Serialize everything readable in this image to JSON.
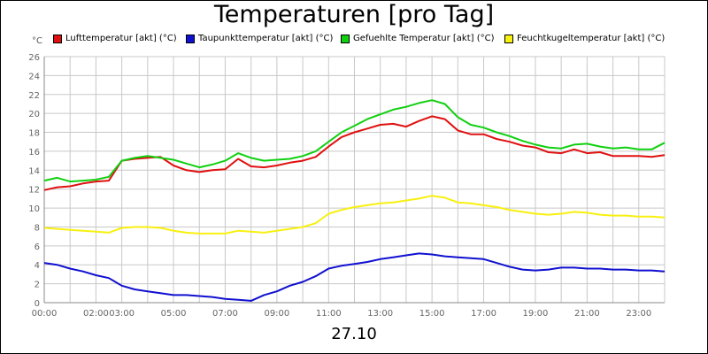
{
  "chart_data": {
    "type": "line",
    "title": "Temperaturen [pro Tag]",
    "date_label": "27.10",
    "y_unit": "°C",
    "ylim": [
      0,
      26
    ],
    "y_ticks": [
      "0",
      "2",
      "4",
      "6",
      "8",
      "10",
      "12",
      "14",
      "16",
      "18",
      "20",
      "22",
      "24",
      "26"
    ],
    "x_tick_labels": [
      "00:00",
      "02:00",
      "03:00",
      "05:00",
      "07:00",
      "09:00",
      "11:00",
      "13:00",
      "15:00",
      "17:00",
      "19:00",
      "21:00",
      "23:00"
    ],
    "x_tick_hours": [
      0,
      2,
      3,
      5,
      7,
      9,
      11,
      13,
      15,
      17,
      19,
      21,
      23
    ],
    "xlim_hours": [
      0,
      24
    ],
    "grid": true,
    "legend_placement": "top",
    "x_hours": [
      0,
      0.5,
      1,
      1.5,
      2,
      2.5,
      3,
      3.5,
      4,
      4.5,
      5,
      5.5,
      6,
      6.5,
      7,
      7.5,
      8,
      8.5,
      9,
      9.5,
      10,
      10.5,
      11,
      11.5,
      12,
      12.5,
      13,
      13.5,
      14,
      14.5,
      15,
      15.5,
      16,
      16.5,
      17,
      17.5,
      18,
      18.5,
      19,
      19.5,
      20,
      20.5,
      21,
      21.5,
      22,
      22.5,
      23,
      23.5,
      24
    ],
    "series": [
      {
        "name": "Lufttemperatur [akt] (°C)",
        "color": "#e01010",
        "values": [
          11.9,
          12.2,
          12.3,
          12.6,
          12.8,
          12.9,
          15.0,
          15.2,
          15.3,
          15.4,
          14.5,
          14.0,
          13.8,
          14.0,
          14.1,
          15.2,
          14.4,
          14.3,
          14.5,
          14.8,
          15.0,
          15.4,
          16.5,
          17.5,
          18.0,
          18.4,
          18.8,
          18.9,
          18.6,
          19.2,
          19.7,
          19.4,
          18.2,
          17.8,
          17.8,
          17.3,
          17.0,
          16.6,
          16.4,
          15.9,
          15.8,
          16.2,
          15.8,
          15.9,
          15.5,
          15.5,
          15.5,
          15.4,
          15.6
        ]
      },
      {
        "name": "Taupunkttemperatur [akt] (°C)",
        "color": "#1010d0",
        "values": [
          4.2,
          4.0,
          3.6,
          3.3,
          2.9,
          2.6,
          1.8,
          1.4,
          1.2,
          1.0,
          0.8,
          0.8,
          0.7,
          0.6,
          0.4,
          0.3,
          0.2,
          0.8,
          1.2,
          1.8,
          2.2,
          2.8,
          3.6,
          3.9,
          4.1,
          4.3,
          4.6,
          4.8,
          5.0,
          5.2,
          5.1,
          4.9,
          4.8,
          4.7,
          4.6,
          4.2,
          3.8,
          3.5,
          3.4,
          3.5,
          3.7,
          3.7,
          3.6,
          3.6,
          3.5,
          3.5,
          3.4,
          3.4,
          3.3
        ]
      },
      {
        "name": "Gefuehlte Temperatur [akt] (°C)",
        "color": "#10d010",
        "values": [
          12.9,
          13.2,
          12.8,
          12.9,
          13.0,
          13.3,
          15.0,
          15.3,
          15.5,
          15.3,
          15.1,
          14.7,
          14.3,
          14.6,
          15.0,
          15.8,
          15.3,
          15.0,
          15.1,
          15.2,
          15.5,
          16.0,
          17.0,
          18.0,
          18.7,
          19.4,
          19.9,
          20.4,
          20.7,
          21.1,
          21.4,
          21.0,
          19.6,
          18.8,
          18.5,
          18.0,
          17.6,
          17.1,
          16.7,
          16.4,
          16.3,
          16.7,
          16.8,
          16.5,
          16.3,
          16.4,
          16.2,
          16.2,
          16.9
        ]
      },
      {
        "name": "Feuchtkugeltemperatur [akt] (°C)",
        "color": "#f8f010",
        "values": [
          7.9,
          7.8,
          7.7,
          7.6,
          7.5,
          7.4,
          7.9,
          8.0,
          8.0,
          7.9,
          7.6,
          7.4,
          7.3,
          7.3,
          7.3,
          7.6,
          7.5,
          7.4,
          7.6,
          7.8,
          8.0,
          8.4,
          9.4,
          9.8,
          10.1,
          10.3,
          10.5,
          10.6,
          10.8,
          11.0,
          11.3,
          11.1,
          10.6,
          10.5,
          10.3,
          10.1,
          9.8,
          9.6,
          9.4,
          9.3,
          9.4,
          9.6,
          9.5,
          9.3,
          9.2,
          9.2,
          9.1,
          9.1,
          9.0
        ]
      }
    ]
  }
}
